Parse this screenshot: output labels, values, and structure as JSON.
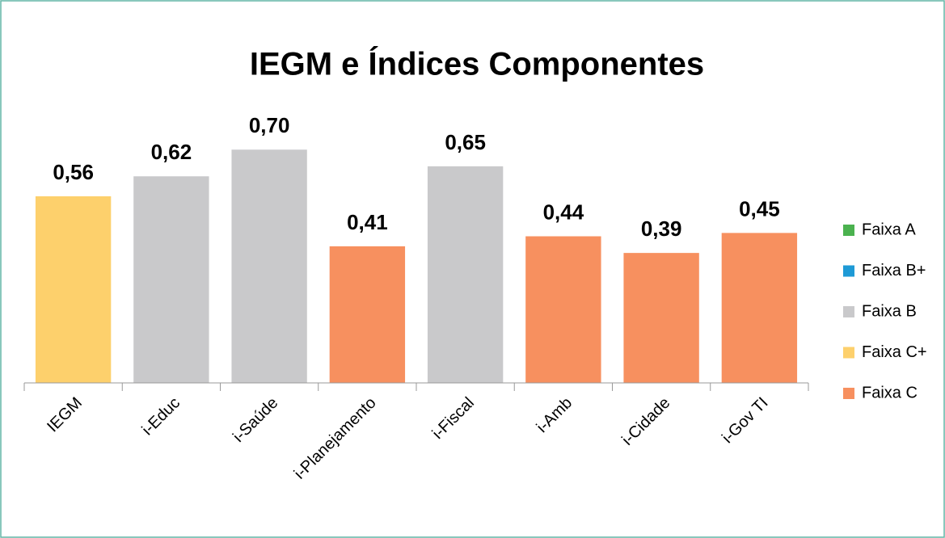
{
  "chart_data": {
    "type": "bar",
    "title": "IEGM e Índices Componentes",
    "categories": [
      "IEGM",
      "i-Educ",
      "i-Saúde",
      "i-Planejamento",
      "i-Fiscal",
      "i-Amb",
      "i-Cidade",
      "i-Gov TI"
    ],
    "values": [
      0.56,
      0.62,
      0.7,
      0.41,
      0.65,
      0.44,
      0.39,
      0.45
    ],
    "value_labels": [
      "0,56",
      "0,62",
      "0,70",
      "0,41",
      "0,65",
      "0,44",
      "0,39",
      "0,45"
    ],
    "colors": [
      "#fdd06c",
      "#c9c9cb",
      "#c9c9cb",
      "#f7905f",
      "#c9c9cb",
      "#f7905f",
      "#f7905f",
      "#f7905f"
    ],
    "ylim": [
      0,
      0.8
    ],
    "legend": [
      {
        "name": "Faixa A",
        "color": "#4bb24f"
      },
      {
        "name": "Faixa B+",
        "color": "#1e9ad6"
      },
      {
        "name": "Faixa B",
        "color": "#c9c9cb"
      },
      {
        "name": "Faixa C+",
        "color": "#fdd06c"
      },
      {
        "name": "Faixa C",
        "color": "#f7905f"
      }
    ]
  }
}
